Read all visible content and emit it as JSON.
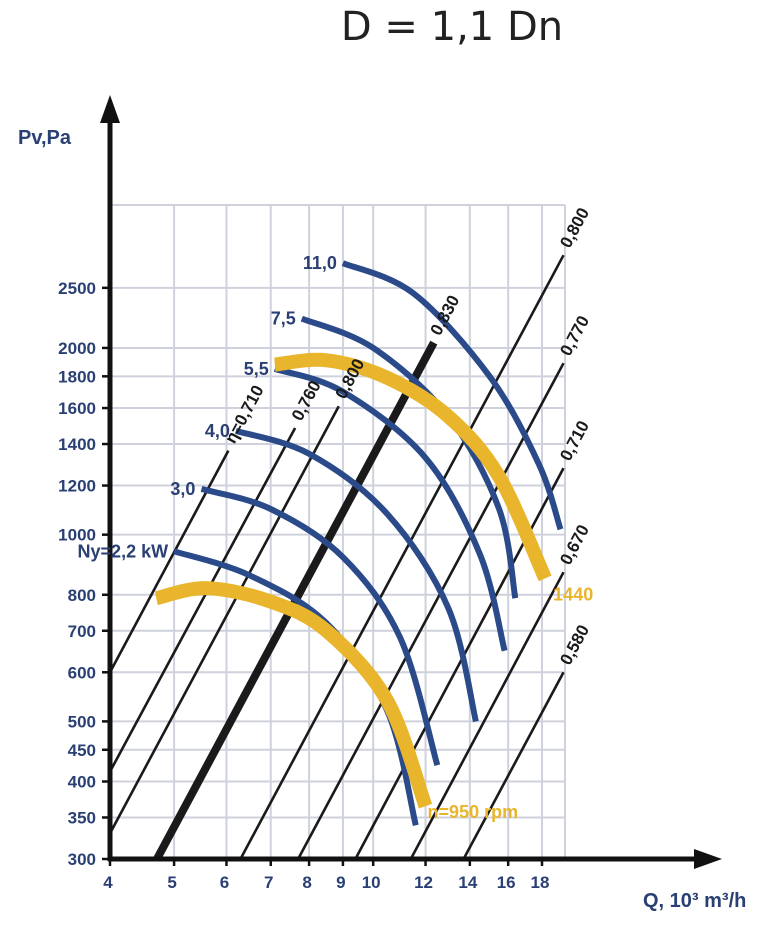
{
  "chart_data": {
    "type": "line",
    "title": "D = 1,1 Dn",
    "xlabel": "Q, 10³ m³/h",
    "ylabel": "Pv,Pa",
    "x_scale": "log",
    "y_scale": "log",
    "xlim": [
      4,
      19.5
    ],
    "ylim": [
      300,
      3400
    ],
    "x_ticks": [
      4,
      5,
      6,
      7,
      8,
      9,
      10,
      12,
      14,
      16,
      18
    ],
    "x_tick_labels": [
      "4",
      "5",
      "6",
      "7",
      "8",
      "9",
      "10",
      "12",
      "14",
      "16",
      "18"
    ],
    "y_ticks": [
      300,
      350,
      400,
      450,
      500,
      600,
      700,
      800,
      1000,
      1200,
      1400,
      1600,
      1800,
      2000,
      2500
    ],
    "y_tick_labels": [
      "300",
      "350",
      "400",
      "450",
      "500",
      "600",
      "700",
      "800",
      "1000",
      "1200",
      "1400",
      "1600",
      "1800",
      "2000",
      "2500"
    ],
    "grid": true,
    "efficiency_lines": [
      {
        "label": "η=0,710",
        "points": [
          [
            4.0,
            600
          ],
          [
            6.04,
            1366
          ]
        ],
        "bold": false
      },
      {
        "label": "0,760",
        "points": [
          [
            4.0,
            415
          ],
          [
            7.62,
            1486
          ]
        ],
        "bold": false
      },
      {
        "label": "0,800",
        "points": [
          [
            4.0,
            330
          ],
          [
            8.87,
            1611
          ]
        ],
        "bold": false
      },
      {
        "label": "0,830",
        "points": [
          [
            4.71,
            300
          ],
          [
            12.35,
            2040
          ]
        ],
        "bold": true
      },
      {
        "label": "0,800",
        "points": [
          [
            6.3,
            300
          ],
          [
            19.4,
            2822
          ]
        ],
        "bold": false
      },
      {
        "label": "0,770",
        "points": [
          [
            7.7,
            300
          ],
          [
            19.4,
            1890
          ]
        ],
        "bold": false
      },
      {
        "label": "0,710",
        "points": [
          [
            9.4,
            300
          ],
          [
            19.4,
            1280
          ]
        ],
        "bold": false
      },
      {
        "label": "0,670",
        "points": [
          [
            11.4,
            300
          ],
          [
            19.4,
            870
          ]
        ],
        "bold": false
      },
      {
        "label": "0,580",
        "points": [
          [
            13.7,
            300
          ],
          [
            19.4,
            600
          ]
        ],
        "bold": false
      }
    ],
    "efficiency_top_labels": [
      "η=0,710",
      "0,760",
      "0,800",
      "0,830",
      "0,800",
      "0,770",
      "0,710",
      "0,670",
      "0,580"
    ],
    "power_curves": [
      {
        "label": "Ny=2,2 kW",
        "points": [
          [
            5.0,
            940
          ],
          [
            6.5,
            860
          ],
          [
            8.5,
            720
          ],
          [
            10.5,
            520
          ],
          [
            11.6,
            340
          ]
        ]
      },
      {
        "label": "3,0",
        "points": [
          [
            5.5,
            1185
          ],
          [
            7.0,
            1100
          ],
          [
            9.0,
            920
          ],
          [
            11.0,
            680
          ],
          [
            12.5,
            425
          ]
        ]
      },
      {
        "label": "4,0",
        "points": [
          [
            6.2,
            1470
          ],
          [
            8.0,
            1350
          ],
          [
            10.5,
            1080
          ],
          [
            13.0,
            760
          ],
          [
            14.3,
            500
          ]
        ]
      },
      {
        "label": "5,5",
        "points": [
          [
            7.1,
            1850
          ],
          [
            9.0,
            1700
          ],
          [
            12.0,
            1330
          ],
          [
            14.5,
            930
          ],
          [
            15.8,
            650
          ]
        ]
      },
      {
        "label": "7,5",
        "points": [
          [
            7.8,
            2230
          ],
          [
            10.0,
            2000
          ],
          [
            13.0,
            1550
          ],
          [
            15.5,
            1100
          ],
          [
            16.4,
            790
          ]
        ]
      },
      {
        "label": "11,0",
        "points": [
          [
            9.0,
            2740
          ],
          [
            11.5,
            2450
          ],
          [
            15.0,
            1800
          ],
          [
            17.8,
            1300
          ],
          [
            19.2,
            1020
          ]
        ]
      }
    ],
    "speed_curves": [
      {
        "label": "n=950 rpm",
        "points": [
          [
            4.7,
            790
          ],
          [
            5.6,
            820
          ],
          [
            7.0,
            780
          ],
          [
            8.5,
            700
          ],
          [
            10.5,
            540
          ],
          [
            12.0,
            365
          ]
        ]
      },
      {
        "label": "1440",
        "points": [
          [
            7.1,
            1880
          ],
          [
            8.5,
            1910
          ],
          [
            10.5,
            1790
          ],
          [
            13.0,
            1550
          ],
          [
            15.5,
            1240
          ],
          [
            18.2,
            850
          ]
        ]
      }
    ],
    "colors": {
      "power_curve": "#2a4a8a",
      "speed_curve": "#e8b52c",
      "efficiency_line": "#1a1a1a",
      "grid": "#cfd2dc",
      "axis": "#111111",
      "tick_text": "#2a3f73"
    }
  }
}
